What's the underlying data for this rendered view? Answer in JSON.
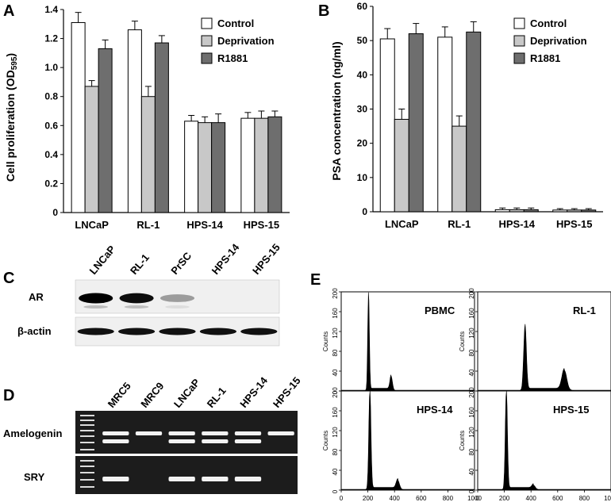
{
  "panels": {
    "A": {
      "letter": "A",
      "ylabel": "Cell proliferation (OD",
      "ylabel_sub": "595",
      "ylabel_close": ")",
      "legend": [
        "Control",
        "Deprivation",
        "R1881"
      ],
      "colors": [
        "#ffffff",
        "#c8c8c8",
        "#6e6e6e"
      ]
    },
    "B": {
      "letter": "B",
      "ylabel": "PSA concentration (ng/ml)",
      "legend": [
        "Control",
        "Deprivation",
        "R1881"
      ],
      "colors": [
        "#ffffff",
        "#c8c8c8",
        "#6e6e6e"
      ]
    },
    "C": {
      "letter": "C",
      "lanes": [
        "LNCaP",
        "RL-1",
        "PrSC",
        "HPS-14",
        "HPS-15"
      ],
      "rows": [
        "AR",
        "β-actin"
      ],
      "ar_intensity": [
        1.0,
        0.95,
        0.35,
        0.0,
        0.0
      ]
    },
    "D": {
      "letter": "D",
      "lanes": [
        "MRC5",
        "MRC9",
        "LNCaP",
        "RL-1",
        "HPS-14",
        "HPS-15"
      ],
      "rows": [
        "Amelogenin",
        "SRY"
      ],
      "amelogenin_bands": [
        [
          1,
          1
        ],
        [
          1,
          0
        ],
        [
          1,
          1
        ],
        [
          1,
          1
        ],
        [
          1,
          1
        ],
        [
          1,
          0
        ]
      ],
      "sry_bands": [
        1,
        0,
        1,
        1,
        1,
        0
      ]
    },
    "E": {
      "letter": "E",
      "plots": [
        "PBMC",
        "RL-1",
        "HPS-14",
        "HPS-15"
      ],
      "ylabel": "Counts",
      "y_ticks": [
        "0",
        "40",
        "80",
        "120",
        "160",
        "200"
      ],
      "x_ticks": [
        "0",
        "200",
        "400",
        "600",
        "800",
        "1000"
      ]
    }
  },
  "chart_data": [
    {
      "type": "bar",
      "panel": "A",
      "categories": [
        "LNCaP",
        "RL-1",
        "HPS-14",
        "HPS-15"
      ],
      "series": [
        {
          "name": "Control",
          "values": [
            1.31,
            1.26,
            0.63,
            0.65
          ],
          "errors": [
            0.07,
            0.06,
            0.04,
            0.04
          ]
        },
        {
          "name": "Deprivation",
          "values": [
            0.87,
            0.8,
            0.62,
            0.65
          ],
          "errors": [
            0.04,
            0.07,
            0.04,
            0.05
          ]
        },
        {
          "name": "R1881",
          "values": [
            1.13,
            1.17,
            0.62,
            0.66
          ],
          "errors": [
            0.06,
            0.05,
            0.06,
            0.04
          ]
        }
      ],
      "ylim": [
        0,
        1.4
      ],
      "y_ticks": [
        "0",
        "0.2",
        "0.4",
        "0.6",
        "0.8",
        "1.0",
        "1.2",
        "1.4"
      ],
      "ylabel": "Cell proliferation (OD595)",
      "legend_position": "top-right"
    },
    {
      "type": "bar",
      "panel": "B",
      "categories": [
        "LNCaP",
        "RL-1",
        "HPS-14",
        "HPS-15"
      ],
      "series": [
        {
          "name": "Control",
          "values": [
            50.5,
            51.0,
            0.6,
            0.5
          ],
          "errors": [
            3.0,
            3.0,
            0.5,
            0.4
          ]
        },
        {
          "name": "Deprivation",
          "values": [
            27.0,
            25.0,
            0.6,
            0.5
          ],
          "errors": [
            3.0,
            3.0,
            0.5,
            0.4
          ]
        },
        {
          "name": "R1881",
          "values": [
            52.0,
            52.5,
            0.6,
            0.5
          ],
          "errors": [
            3.0,
            3.0,
            0.5,
            0.4
          ]
        }
      ],
      "ylim": [
        0,
        60
      ],
      "y_ticks": [
        "0",
        "10",
        "20",
        "30",
        "40",
        "50",
        "60"
      ],
      "ylabel": "PSA concentration (ng/ml)",
      "legend_position": "top-right"
    }
  ]
}
